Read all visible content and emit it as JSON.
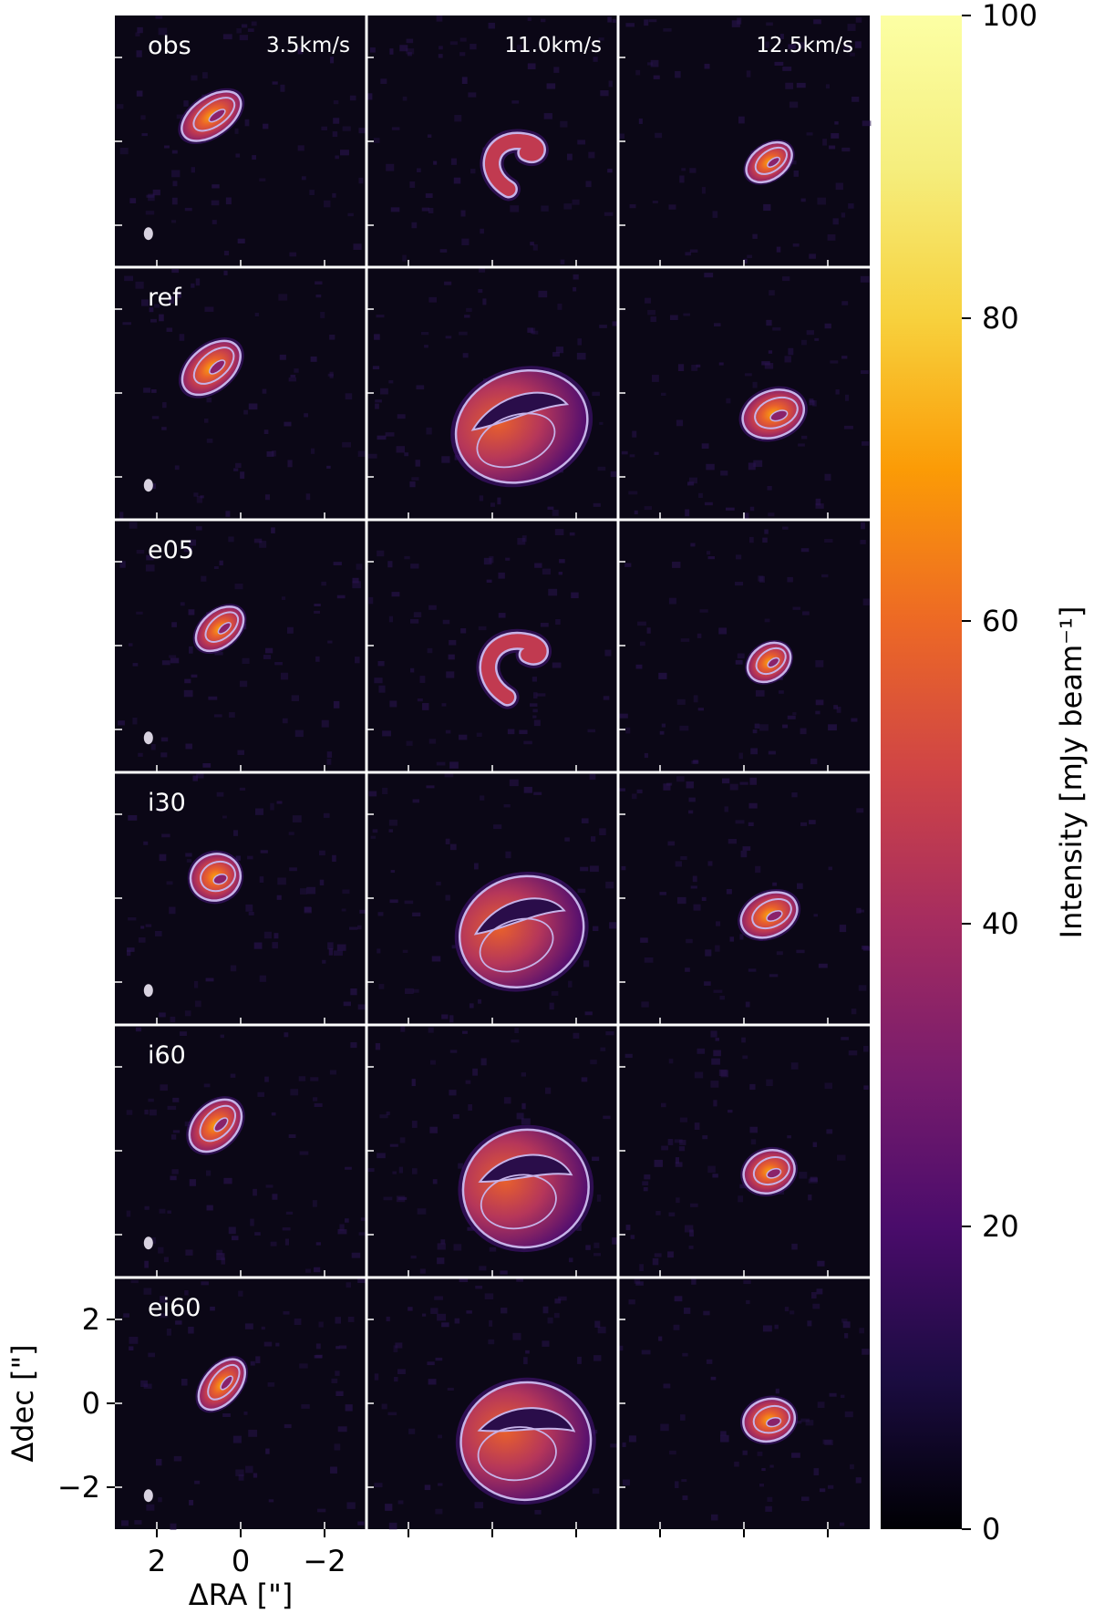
{
  "chart_data": {
    "type": "heatmap",
    "rows": [
      "obs",
      "ref",
      "e05",
      "i30",
      "i60",
      "ei60"
    ],
    "velocities": [
      "3.5km/s",
      "11.0km/s",
      "12.5km/s"
    ],
    "xlabel": "ΔRA [\"]",
    "ylabel": "Δdec [\"]",
    "xlim": [
      3,
      -3
    ],
    "ylim": [
      -3,
      3
    ],
    "x_ticks": [
      2,
      0,
      -2
    ],
    "x_tick_labels": [
      "2",
      "0",
      "−2"
    ],
    "y_ticks": [
      2,
      0,
      -2
    ],
    "y_tick_labels": [
      "2",
      "0",
      "−2"
    ],
    "colorbar": {
      "label": "Intensity [mJy beam⁻¹]",
      "range": [
        0,
        100
      ],
      "ticks": [
        0,
        20,
        40,
        60,
        80,
        100
      ],
      "tick_labels": [
        "0",
        "20",
        "40",
        "60",
        "80",
        "100"
      ],
      "colormap": "inferno"
    },
    "background_color": "#0b0716",
    "contour_color": "#c6b3e8",
    "panels": [
      [
        {
          "cx": 0.7,
          "cy": 0.6,
          "rx": 0.8,
          "ry": 0.45,
          "rot": 35,
          "shape": "blob",
          "peak": 55
        },
        {
          "cx": -0.6,
          "cy": -0.6,
          "rx": 0.7,
          "ry": 0.6,
          "rot": 0,
          "shape": "arc",
          "peak": 50
        },
        {
          "cx": -0.6,
          "cy": -0.5,
          "rx": 0.6,
          "ry": 0.4,
          "rot": 35,
          "shape": "blob",
          "peak": 55
        }
      ],
      [
        {
          "cx": 0.7,
          "cy": 0.6,
          "rx": 0.8,
          "ry": 0.5,
          "rot": 40,
          "shape": "blob",
          "peak": 75
        },
        {
          "cx": -0.7,
          "cy": -0.8,
          "rx": 1.6,
          "ry": 1.3,
          "rot": 20,
          "shape": "crescent",
          "peak": 58
        },
        {
          "cx": -0.7,
          "cy": -0.5,
          "rx": 0.75,
          "ry": 0.55,
          "rot": 20,
          "shape": "blob",
          "peak": 68
        }
      ],
      [
        {
          "cx": 0.5,
          "cy": 0.4,
          "rx": 0.65,
          "ry": 0.42,
          "rot": 40,
          "shape": "blob",
          "peak": 58
        },
        {
          "cx": -0.6,
          "cy": -0.6,
          "rx": 0.8,
          "ry": 0.7,
          "rot": 0,
          "shape": "arc",
          "peak": 55
        },
        {
          "cx": -0.6,
          "cy": -0.4,
          "rx": 0.55,
          "ry": 0.42,
          "rot": 35,
          "shape": "blob",
          "peak": 55
        }
      ],
      [
        {
          "cx": 0.6,
          "cy": 0.5,
          "rx": 0.6,
          "ry": 0.55,
          "rot": 20,
          "shape": "blob",
          "peak": 78
        },
        {
          "cx": -0.7,
          "cy": -0.8,
          "rx": 1.5,
          "ry": 1.3,
          "rot": 20,
          "shape": "crescent",
          "peak": 55
        },
        {
          "cx": -0.6,
          "cy": -0.4,
          "rx": 0.7,
          "ry": 0.5,
          "rot": 25,
          "shape": "blob",
          "peak": 72
        }
      ],
      [
        {
          "cx": 0.6,
          "cy": 0.6,
          "rx": 0.72,
          "ry": 0.5,
          "rot": 45,
          "shape": "blob",
          "peak": 70
        },
        {
          "cx": -0.8,
          "cy": -0.9,
          "rx": 1.5,
          "ry": 1.4,
          "rot": 10,
          "shape": "crescent",
          "peak": 68
        },
        {
          "cx": -0.6,
          "cy": -0.5,
          "rx": 0.62,
          "ry": 0.5,
          "rot": 20,
          "shape": "blob",
          "peak": 68
        }
      ],
      [
        {
          "cx": 0.45,
          "cy": 0.45,
          "rx": 0.7,
          "ry": 0.42,
          "rot": 50,
          "shape": "blob",
          "peak": 80
        },
        {
          "cx": -0.8,
          "cy": -0.9,
          "rx": 1.55,
          "ry": 1.4,
          "rot": 5,
          "shape": "crescent",
          "peak": 60
        },
        {
          "cx": -0.6,
          "cy": -0.4,
          "rx": 0.62,
          "ry": 0.5,
          "rot": 15,
          "shape": "blob",
          "peak": 72
        }
      ]
    ]
  }
}
